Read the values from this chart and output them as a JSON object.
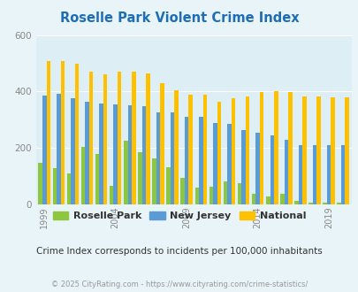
{
  "title": "Roselle Park Violent Crime Index",
  "subtitle": "Crime Index corresponds to incidents per 100,000 inhabitants",
  "footer": "© 2025 CityRating.com - https://www.cityrating.com/crime-statistics/",
  "years": [
    1999,
    2000,
    2001,
    2002,
    2003,
    2004,
    2005,
    2006,
    2007,
    2008,
    2009,
    2010,
    2011,
    2012,
    2013,
    2014,
    2015,
    2016,
    2017,
    2018,
    2019,
    2020
  ],
  "roselle_park": [
    148,
    128,
    110,
    205,
    180,
    65,
    225,
    185,
    162,
    133,
    95,
    58,
    62,
    83,
    75,
    38,
    27,
    38,
    14,
    5,
    5,
    5
  ],
  "new_jersey": [
    385,
    393,
    375,
    363,
    357,
    355,
    352,
    348,
    327,
    327,
    310,
    309,
    287,
    285,
    263,
    255,
    243,
    230,
    210,
    210,
    210,
    210
  ],
  "national": [
    507,
    507,
    498,
    470,
    460,
    470,
    469,
    465,
    430,
    405,
    390,
    390,
    365,
    375,
    381,
    397,
    400,
    397,
    384,
    381,
    380,
    380
  ],
  "bar_colors": {
    "roselle_park": "#8dc63f",
    "new_jersey": "#5b9bd5",
    "national": "#ffc000"
  },
  "ylim": [
    0,
    600
  ],
  "yticks": [
    0,
    200,
    400,
    600
  ],
  "xtick_years": [
    1999,
    2004,
    2009,
    2014,
    2019
  ],
  "bg_color": "#e8f4f8",
  "plot_bg": "#ddeef5",
  "title_color": "#1f6eb5",
  "subtitle_color": "#333333",
  "footer_color": "#999999",
  "bar_width": 0.28
}
